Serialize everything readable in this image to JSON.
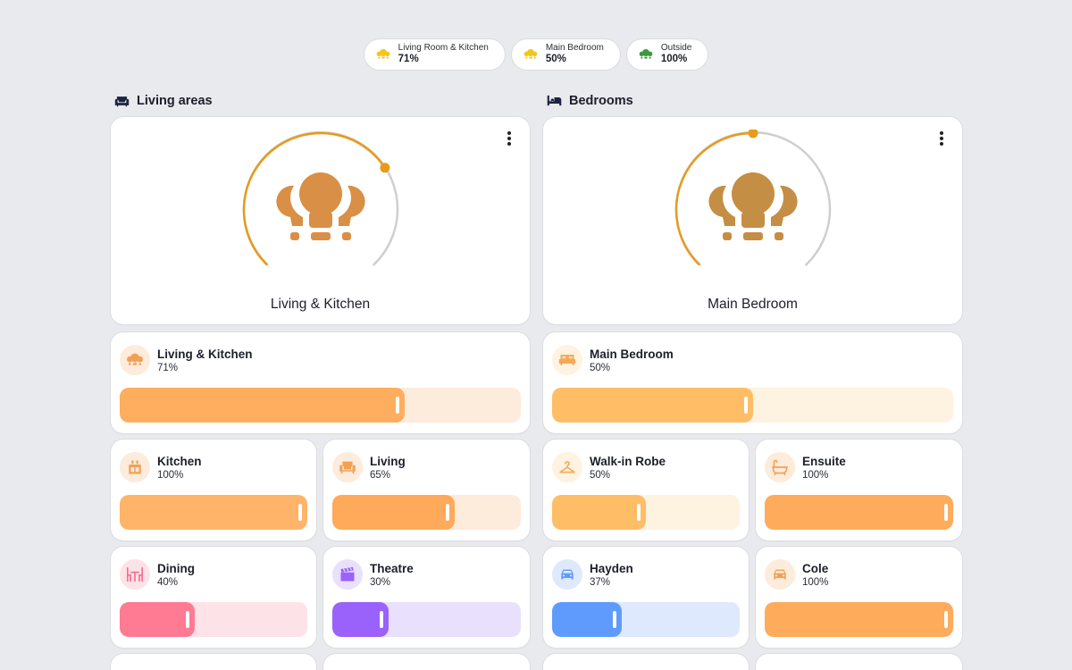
{
  "chips": [
    {
      "name": "Living Room & Kitchen",
      "value": "71%",
      "icon": "lights-icon",
      "color": "#f5c518"
    },
    {
      "name": "Main Bedroom",
      "value": "50%",
      "icon": "lights-icon",
      "color": "#f5c518"
    },
    {
      "name": "Outside",
      "value": "100%",
      "icon": "lights-icon",
      "color": "#3a9a3f"
    }
  ],
  "sections": {
    "living": {
      "title": "Living areas",
      "icon": "sofa-icon"
    },
    "bedrooms": {
      "title": "Bedrooms",
      "icon": "bed-icon"
    }
  },
  "heroes": {
    "living": {
      "name": "Living & Kitchen",
      "level": 0.71,
      "icon": "lights-icon",
      "bulb_color": "#d98f45",
      "arc_color": "#e89a1c"
    },
    "bedroom": {
      "name": "Main Bedroom",
      "level": 0.5,
      "icon": "lights-icon",
      "bulb_color": "#c58e45",
      "arc_color": "#e89a1c"
    }
  },
  "tiles": {
    "living_kitchen": {
      "name": "Living & Kitchen",
      "value": "71%",
      "level": 0.71,
      "icon": "lights-icon",
      "fill": "#ffad5e",
      "track": "#fdebdb",
      "icon_bg": "#fdebdb",
      "icon_color": "#f3a055"
    },
    "main_bedroom": {
      "name": "Main Bedroom",
      "value": "50%",
      "level": 0.5,
      "icon": "bed-icon",
      "fill": "#ffbd66",
      "track": "#fef2e1",
      "icon_bg": "#fef2e1",
      "icon_color": "#f3a955"
    },
    "kitchen": {
      "name": "Kitchen",
      "value": "100%",
      "level": 1.0,
      "icon": "stove-icon",
      "fill": "#ffb469",
      "track": "#fdebdb",
      "icon_bg": "#fdebdb",
      "icon_color": "#f3a055"
    },
    "living": {
      "name": "Living",
      "value": "65%",
      "level": 0.65,
      "icon": "armchair-icon",
      "fill": "#ffa95a",
      "track": "#fdebdb",
      "icon_bg": "#fdebdb",
      "icon_color": "#f3a055"
    },
    "walkin": {
      "name": "Walk-in Robe",
      "value": "50%",
      "level": 0.5,
      "icon": "hanger-icon",
      "fill": "#ffbd66",
      "track": "#fef2e1",
      "icon_bg": "#fef2e1",
      "icon_color": "#f3a955"
    },
    "ensuite": {
      "name": "Ensuite",
      "value": "100%",
      "level": 1.0,
      "icon": "bathtub-icon",
      "fill": "#ffab5c",
      "track": "#fdebdb",
      "icon_bg": "#fdebdb",
      "icon_color": "#f3a055"
    },
    "dining": {
      "name": "Dining",
      "value": "40%",
      "level": 0.4,
      "icon": "dining-table-icon",
      "fill": "#ff7a93",
      "track": "#fde2e7",
      "icon_bg": "#fde2e7",
      "icon_color": "#f2708a"
    },
    "theatre": {
      "name": "Theatre",
      "value": "30%",
      "level": 0.3,
      "icon": "clapperboard-icon",
      "fill": "#9a62fb",
      "track": "#e9e0fd",
      "icon_bg": "#e9e0fd",
      "icon_color": "#9a62fb"
    },
    "hayden": {
      "name": "Hayden",
      "value": "37%",
      "level": 0.37,
      "icon": "car-icon",
      "fill": "#5f9bfd",
      "track": "#dfe9fd",
      "icon_bg": "#dfe9fd",
      "icon_color": "#5f9bfd"
    },
    "cole": {
      "name": "Cole",
      "value": "100%",
      "level": 1.0,
      "icon": "car-icon",
      "fill": "#ffab5c",
      "track": "#fdebdb",
      "icon_bg": "#fdebdb",
      "icon_color": "#f3a055"
    }
  }
}
